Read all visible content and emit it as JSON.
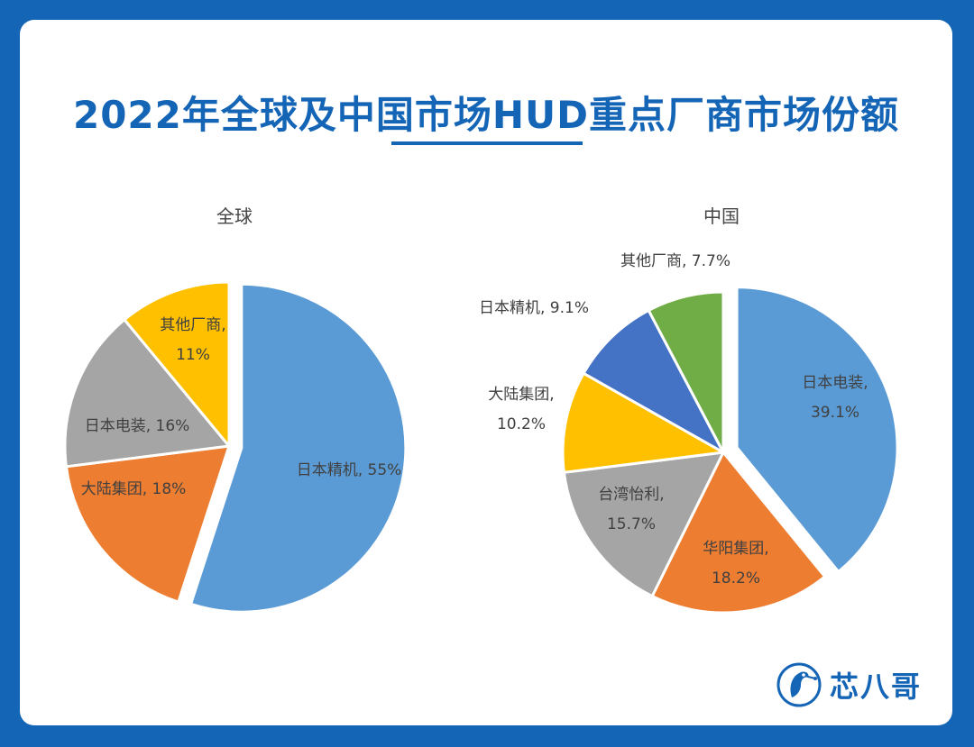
{
  "title": "2022年全球及中国市场HUD重点厂商市场份额",
  "brand": {
    "name": "芯八哥",
    "logo_icon": "bird-circuit-icon",
    "color": "#1565b7"
  },
  "chart_data": [
    {
      "type": "pie",
      "title": "全球",
      "slices": [
        {
          "label": "日本精机",
          "value": 55,
          "value_text": "55%",
          "color": "#5b9bd5",
          "label_style": "inline"
        },
        {
          "label": "大陆集团",
          "value": 18,
          "value_text": "18%",
          "color": "#ed7d31",
          "label_style": "inline"
        },
        {
          "label": "日本电装",
          "value": 16,
          "value_text": "16%",
          "color": "#a5a5a5",
          "label_style": "inline"
        },
        {
          "label": "其他厂商",
          "value": 11,
          "value_text": "11%",
          "color": "#ffc000",
          "label_style": "two-line"
        }
      ]
    },
    {
      "type": "pie",
      "title": "中国",
      "slices": [
        {
          "label": "日本电装",
          "value": 39.1,
          "value_text": "39.1%",
          "color": "#5b9bd5",
          "label_style": "two-line"
        },
        {
          "label": "华阳集团",
          "value": 18.2,
          "value_text": "18.2%",
          "color": "#ed7d31",
          "label_style": "two-line"
        },
        {
          "label": "台湾怡利",
          "value": 15.7,
          "value_text": "15.7%",
          "color": "#a5a5a5",
          "label_style": "two-line"
        },
        {
          "label": "大陆集团",
          "value": 10.2,
          "value_text": "10.2%",
          "color": "#ffc000",
          "label_style": "two-line"
        },
        {
          "label": "日本精机",
          "value": 9.1,
          "value_text": "9.1%",
          "color": "#4472c4",
          "label_style": "inline"
        },
        {
          "label": "其他厂商",
          "value": 7.7,
          "value_text": "7.7%",
          "color": "#70ad47",
          "label_style": "inline"
        }
      ]
    }
  ]
}
